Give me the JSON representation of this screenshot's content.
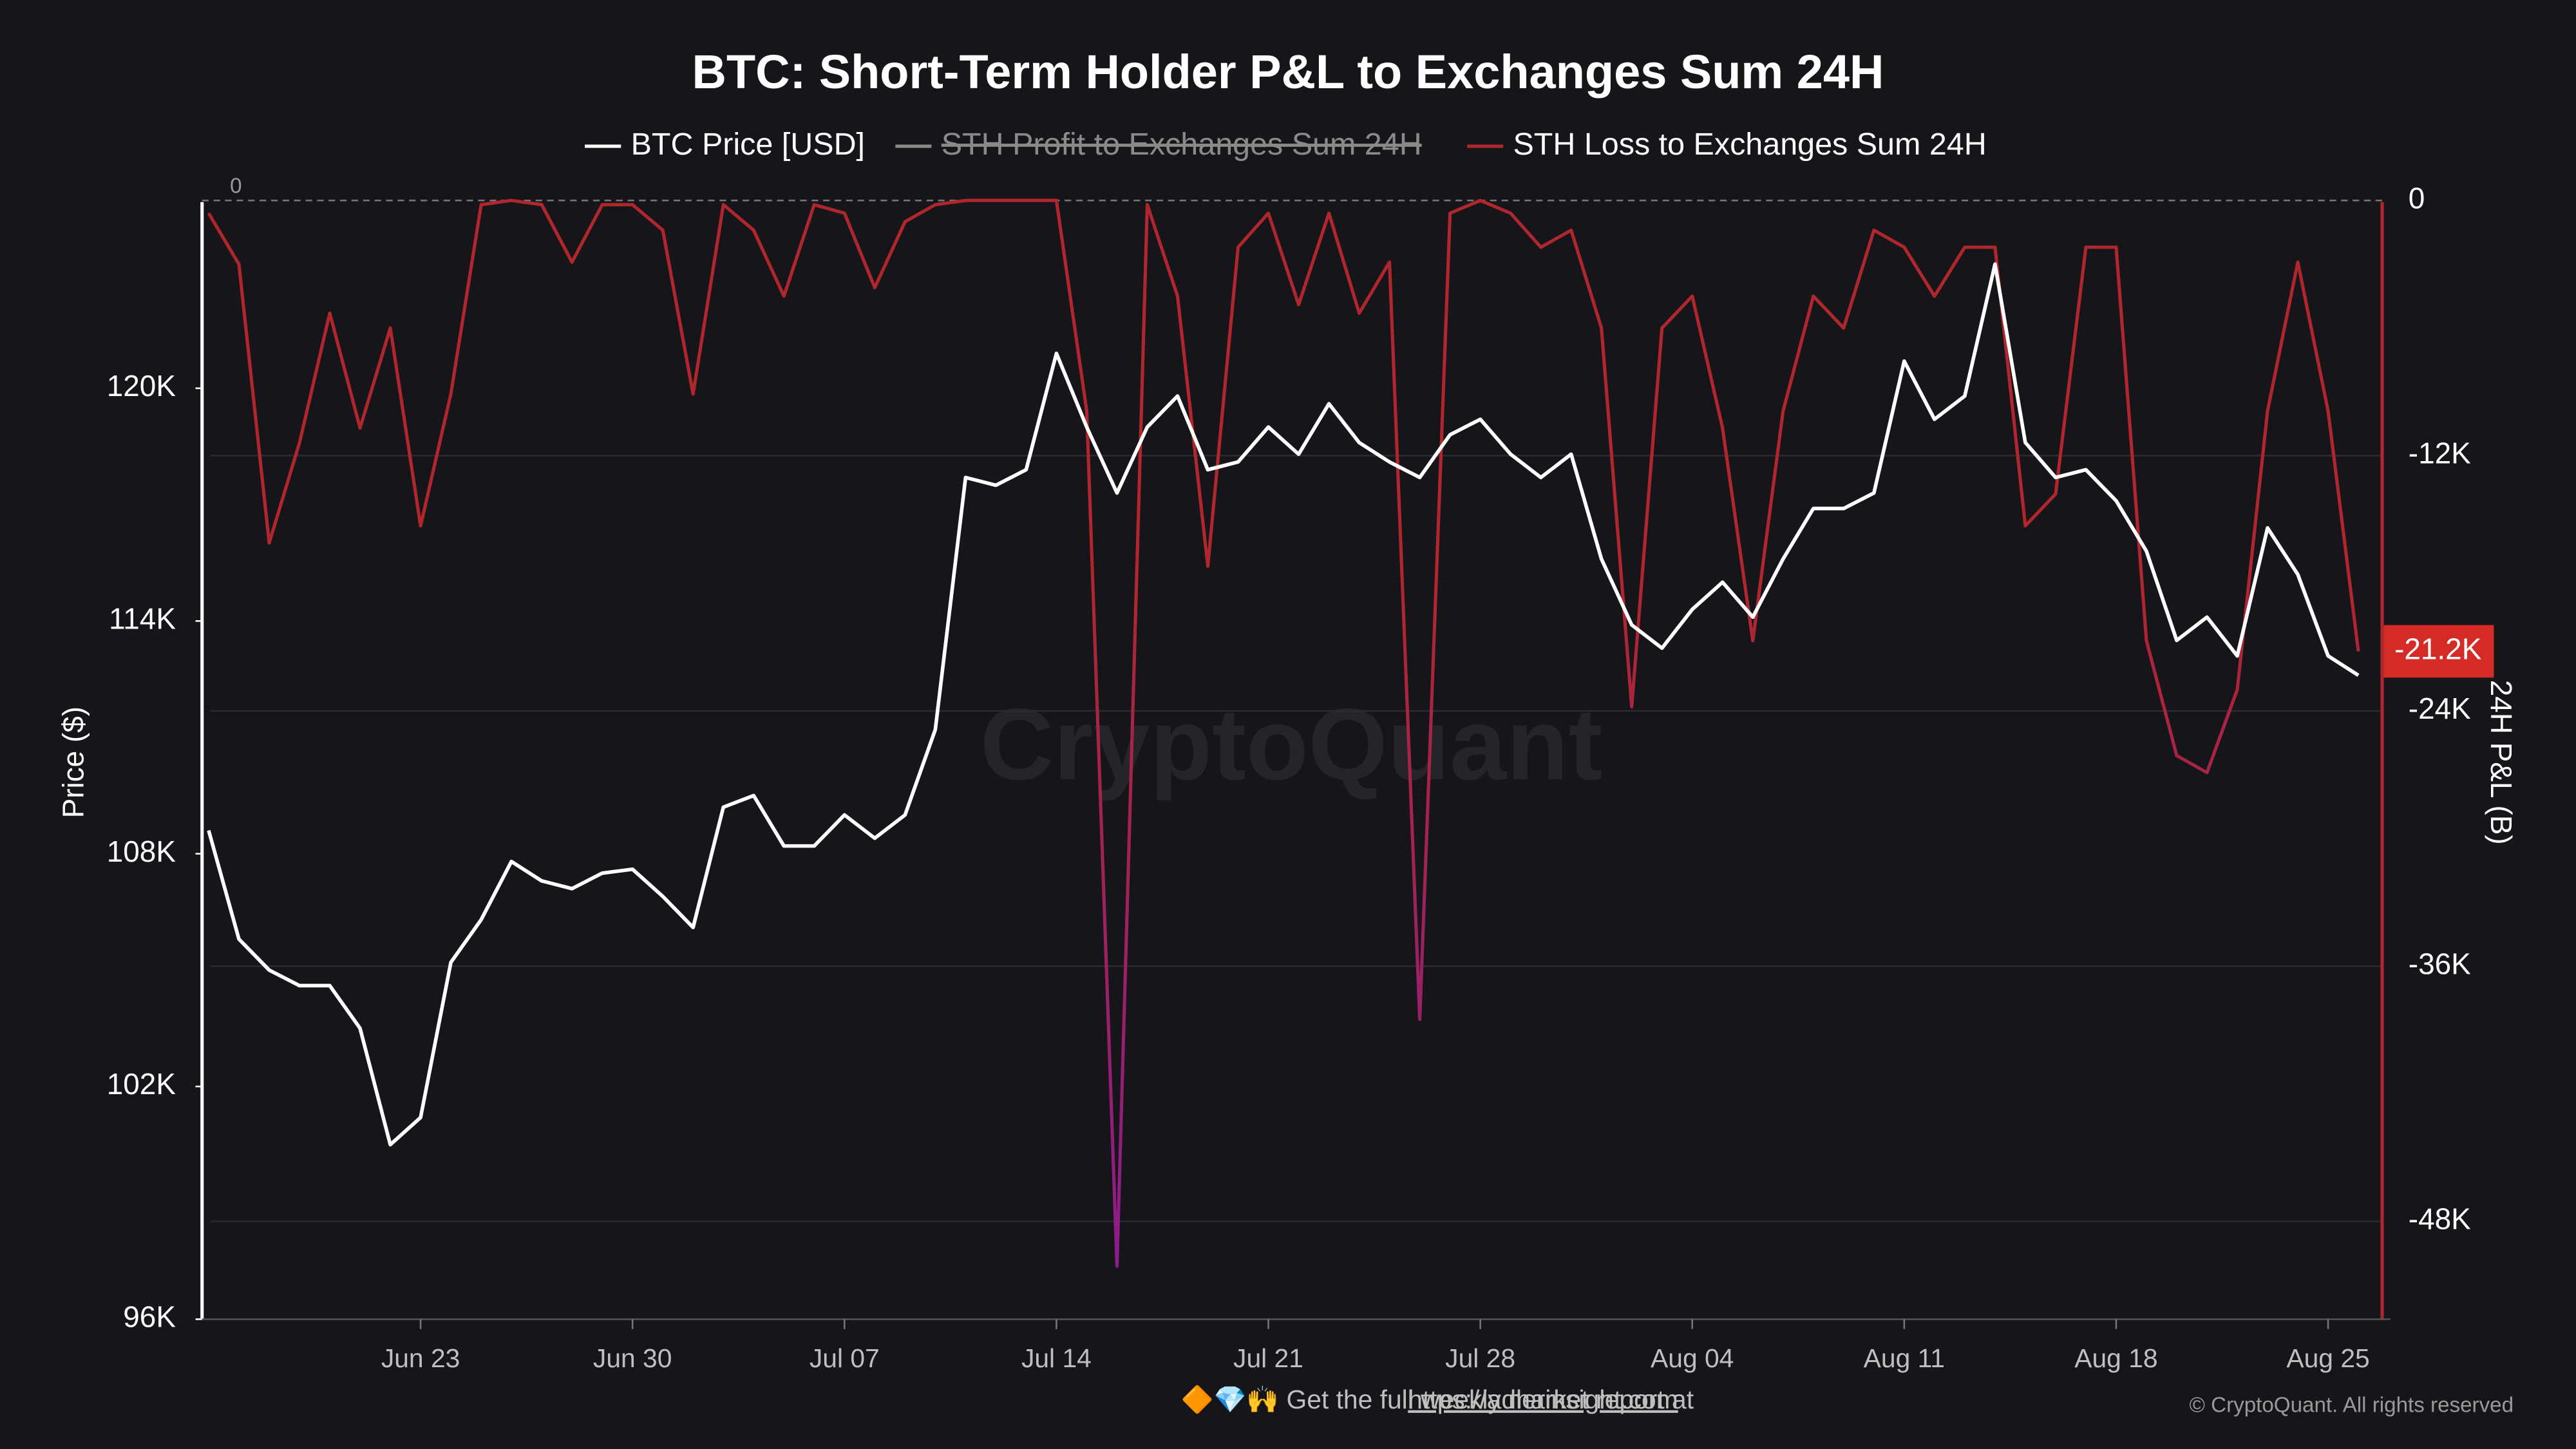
{
  "chart_data": {
    "type": "line",
    "title": "BTC: Short-Term Holder P&L to Exchanges Sum 24H",
    "ylabel": "Price ($)",
    "y2label": "24H P&L (B)",
    "watermark": "CryptoQuant",
    "footer_text": "🔶💎🙌 Get the full weekly market report at",
    "footer_link": "https://adlerinsight.com",
    "copyright": "© CryptoQuant. All rights reserved",
    "grid": true,
    "zero_line": true,
    "x": [
      null,
      null,
      null,
      null,
      null,
      null,
      null,
      "Jun 23",
      null,
      null,
      null,
      null,
      null,
      null,
      "Jun 30",
      null,
      null,
      null,
      null,
      null,
      null,
      "Jul 07",
      null,
      null,
      null,
      null,
      null,
      null,
      "Jul 14",
      null,
      null,
      null,
      null,
      null,
      null,
      "Jul 21",
      null,
      null,
      null,
      null,
      null,
      null,
      "Jul 28",
      null,
      null,
      null,
      null,
      null,
      null,
      "Aug 04",
      null,
      null,
      null,
      null,
      null,
      null,
      "Aug 11",
      null,
      null,
      null,
      null,
      null,
      null,
      "Aug 18",
      null,
      null,
      null,
      null,
      null,
      null,
      "Aug 25",
      null
    ],
    "ylim": [
      96000,
      124800
    ],
    "yticks": [
      {
        "value": 96000,
        "label": "96K"
      },
      {
        "value": 102000,
        "label": "102K"
      },
      {
        "value": 108000,
        "label": "108K"
      },
      {
        "value": 114000,
        "label": "114K"
      },
      {
        "value": 120000,
        "label": "120K"
      }
    ],
    "y2lim": [
      -52600,
      0
    ],
    "y2ticks": [
      0,
      {
        "value": -12000,
        "label": "-12K"
      },
      {
        "value": -24000,
        "label": "-24K"
      },
      {
        "value": -36000,
        "label": "-36K"
      },
      {
        "value": -48000,
        "label": "-48K"
      }
    ],
    "current_value": {
      "value": -21200,
      "label": "-21.2K"
    },
    "series": [
      {
        "name": "BTC Price [USD]",
        "color": "#ffffff",
        "values": [
          108600,
          105800,
          105000,
          104600,
          104600,
          103500,
          100500,
          101200,
          105200,
          106300,
          107800,
          107300,
          107100,
          107500,
          107600,
          106900,
          106100,
          109200,
          109500,
          108200,
          108200,
          109000,
          108400,
          109000,
          111200,
          117700,
          117500,
          117900,
          120900,
          119000,
          117300,
          119000,
          119800,
          117900,
          118100,
          119000,
          118300,
          119600,
          118600,
          118100,
          117700,
          118800,
          119200,
          118300,
          117700,
          118300,
          115600,
          113900,
          113300,
          114300,
          115000,
          114100,
          115600,
          116900,
          116900,
          117300,
          120700,
          119200,
          119800,
          123200,
          118600,
          117700,
          117900,
          117100,
          115800,
          113500,
          114100,
          113100,
          116400,
          115200,
          113100,
          112600
        ]
      },
      {
        "name": "STH Profit to Exchanges Sum 24H",
        "color": "#8a8a8a",
        "hidden": true
      },
      {
        "name": "STH Loss to Exchanges Sum 24H",
        "color": "#b0262d",
        "gradient_to": "#8b1c8f",
        "axis": "y2",
        "values": [
          -600,
          -3000,
          -16100,
          -11400,
          -5300,
          -10700,
          -6000,
          -15300,
          -9100,
          -200,
          0,
          -200,
          -2900,
          -200,
          -200,
          -1400,
          -9100,
          -200,
          -1400,
          -4500,
          -200,
          -600,
          -4100,
          -1000,
          -200,
          0,
          0,
          0,
          0,
          -9900,
          -50100,
          -200,
          -4500,
          -17200,
          -2200,
          -600,
          -4900,
          -600,
          -5300,
          -2900,
          -38500,
          -600,
          0,
          -600,
          -2200,
          -1400,
          -6000,
          -23800,
          -6000,
          -4500,
          -10700,
          -20700,
          -9900,
          -4500,
          -6000,
          -1400,
          -2200,
          -4500,
          -2200,
          -2200,
          -15300,
          -13800,
          -2200,
          -2200,
          -20700,
          -26100,
          -26900,
          -23000,
          -9900,
          -2900,
          -9900,
          -21200
        ]
      }
    ]
  }
}
